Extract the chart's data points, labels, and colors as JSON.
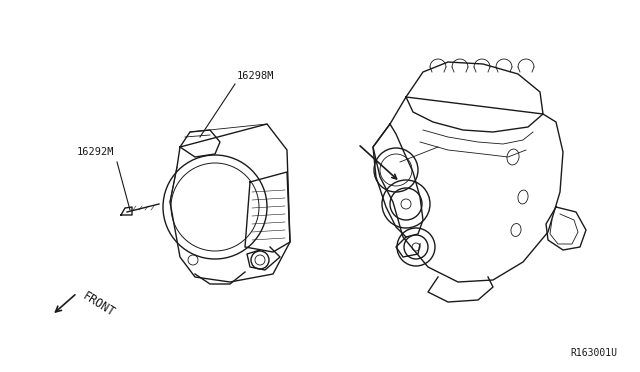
{
  "bg_color": "#ffffff",
  "line_color": "#1a1a1a",
  "label_16298BM": "16298M",
  "label_16292M": "16292M",
  "label_front": "FRONT",
  "label_ref": "R163001U",
  "font_size_labels": 7.5,
  "font_size_ref": 7
}
